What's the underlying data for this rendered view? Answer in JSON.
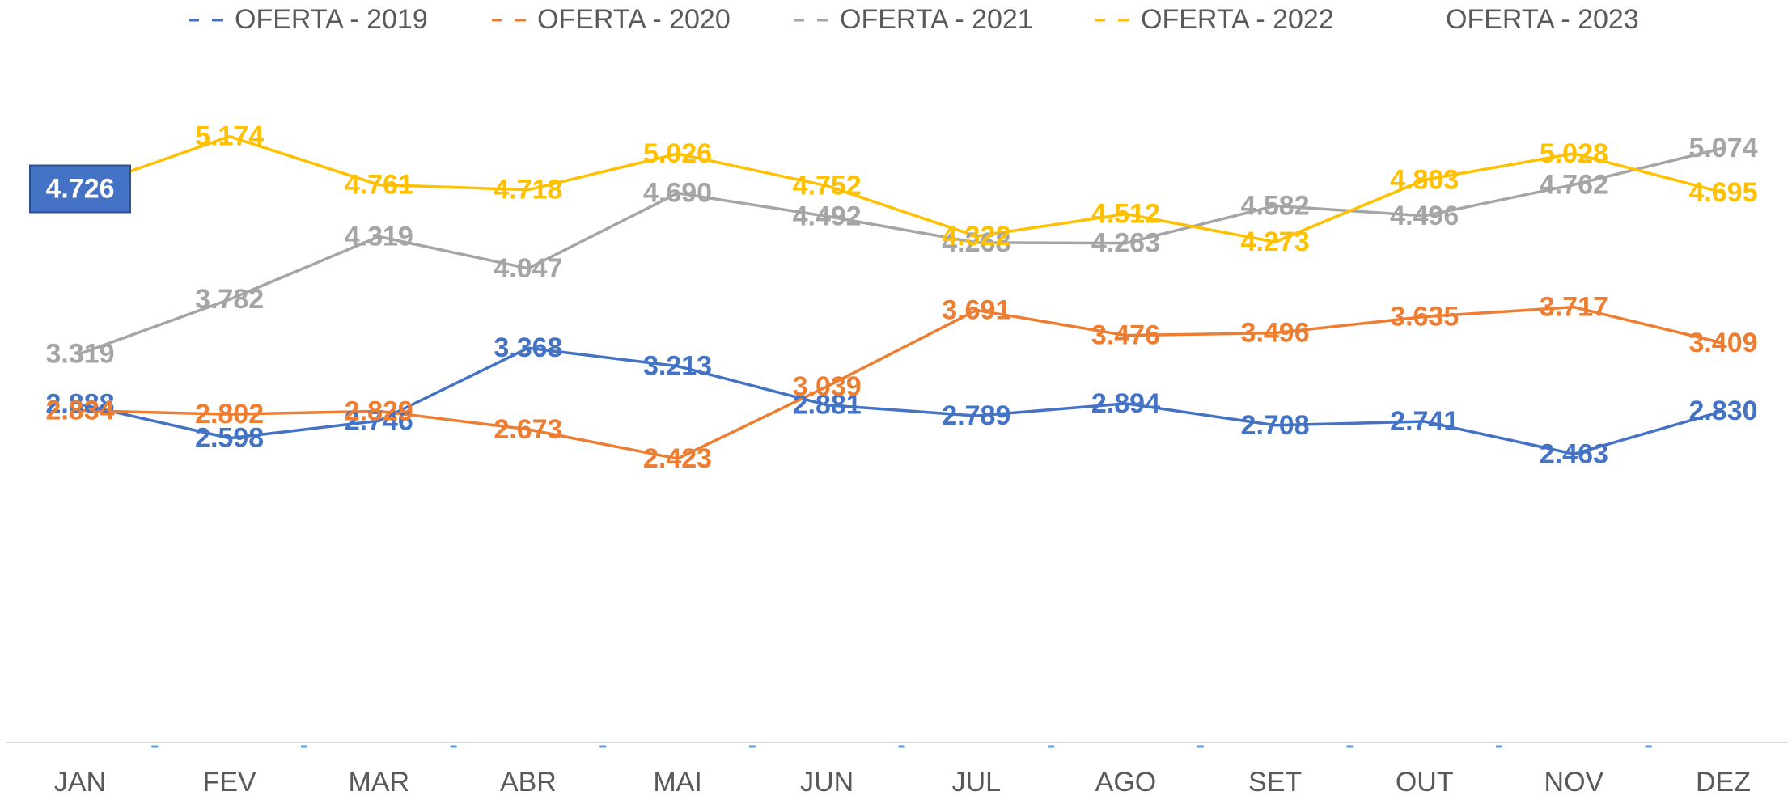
{
  "chart_data": {
    "type": "line",
    "categories": [
      "JAN",
      "FEV",
      "MAR",
      "ABR",
      "MAI",
      "JUN",
      "JUL",
      "AGO",
      "SET",
      "OUT",
      "NOV",
      "DEZ"
    ],
    "ylim": [
      0,
      6000
    ],
    "series": [
      {
        "name": "OFERTA - 2019",
        "color": "#4472c4",
        "values": [
          2888,
          2598,
          2746,
          3368,
          3213,
          2881,
          2789,
          2894,
          2708,
          2741,
          2463,
          2830
        ],
        "value_labels": [
          "2.888",
          "2.598",
          "2.746",
          "3.368",
          "3.213",
          "2.881",
          "2.789",
          "2.894",
          "2.708",
          "2.741",
          "2.463",
          "2.830"
        ]
      },
      {
        "name": "OFERTA - 2020",
        "color": "#ed7d31",
        "values": [
          2834,
          2802,
          2829,
          2673,
          2423,
          3039,
          3691,
          3476,
          3496,
          3635,
          3717,
          3409
        ],
        "value_labels": [
          "2.834",
          "2.802",
          "2.829",
          "2.673",
          "2.423",
          "3.039",
          "3.691",
          "3.476",
          "3.496",
          "3.635",
          "3.717",
          "3.409"
        ]
      },
      {
        "name": "OFERTA - 2021",
        "color": "#a5a5a5",
        "values": [
          3319,
          3782,
          4319,
          4047,
          4690,
          4492,
          4268,
          4263,
          4582,
          4496,
          4762,
          5074
        ],
        "value_labels": [
          "3.319",
          "3.782",
          "4.319",
          "4.047",
          "4.690",
          "4.492",
          "4.268",
          "4.263",
          "4.582",
          "4.496",
          "4.762",
          "5.074"
        ]
      },
      {
        "name": "OFERTA - 2022",
        "color": "#ffc000",
        "values": [
          4726,
          5174,
          4761,
          4718,
          5026,
          4752,
          4322,
          4512,
          4273,
          4803,
          5028,
          4695
        ],
        "value_labels": [
          null,
          "5.174",
          "4.761",
          "4.718",
          "5.026",
          "4.752",
          "4.322",
          "4.512",
          "4.273",
          "4.803",
          "5.028",
          "4.695"
        ]
      },
      {
        "name": "OFERTA - 2023",
        "color": "#4472c4",
        "values": [
          4726,
          null,
          null,
          null,
          null,
          null,
          null,
          null,
          null,
          null,
          null,
          null
        ],
        "value_labels": [
          "4.726",
          null,
          null,
          null,
          null,
          null,
          null,
          null,
          null,
          null,
          null,
          null
        ]
      }
    ]
  }
}
